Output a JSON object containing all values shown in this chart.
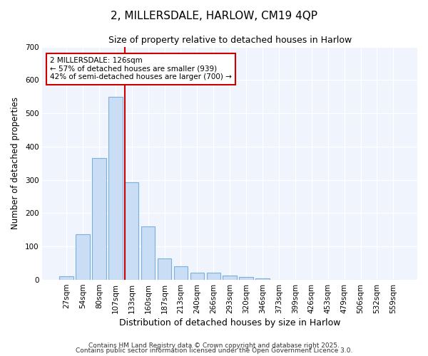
{
  "title": "2, MILLERSDALE, HARLOW, CM19 4QP",
  "subtitle": "Size of property relative to detached houses in Harlow",
  "xlabel": "Distribution of detached houses by size in Harlow",
  "ylabel": "Number of detached properties",
  "categories": [
    "27sqm",
    "54sqm",
    "80sqm",
    "107sqm",
    "133sqm",
    "160sqm",
    "187sqm",
    "213sqm",
    "240sqm",
    "266sqm",
    "293sqm",
    "320sqm",
    "346sqm",
    "373sqm",
    "399sqm",
    "426sqm",
    "453sqm",
    "479sqm",
    "506sqm",
    "532sqm",
    "559sqm"
  ],
  "values": [
    10,
    138,
    365,
    550,
    293,
    160,
    65,
    40,
    22,
    22,
    13,
    8,
    4,
    0,
    0,
    0,
    0,
    0,
    0,
    0,
    0
  ],
  "bar_color": "#c9ddf5",
  "bar_edge_color": "#7ab0e0",
  "vline_x_index": 4,
  "vline_color": "#cc0000",
  "annotation_text": "2 MILLERSDALE: 126sqm\n← 57% of detached houses are smaller (939)\n42% of semi-detached houses are larger (700) →",
  "annotation_box_color": "#ffffff",
  "annotation_box_edge_color": "#cc0000",
  "ylim": [
    0,
    700
  ],
  "yticks": [
    0,
    100,
    200,
    300,
    400,
    500,
    600,
    700
  ],
  "background_color": "#ffffff",
  "plot_bg_color": "#f0f4fc",
  "grid_color": "#ffffff",
  "footer_line1": "Contains HM Land Registry data © Crown copyright and database right 2025.",
  "footer_line2": "Contains public sector information licensed under the Open Government Licence 3.0."
}
